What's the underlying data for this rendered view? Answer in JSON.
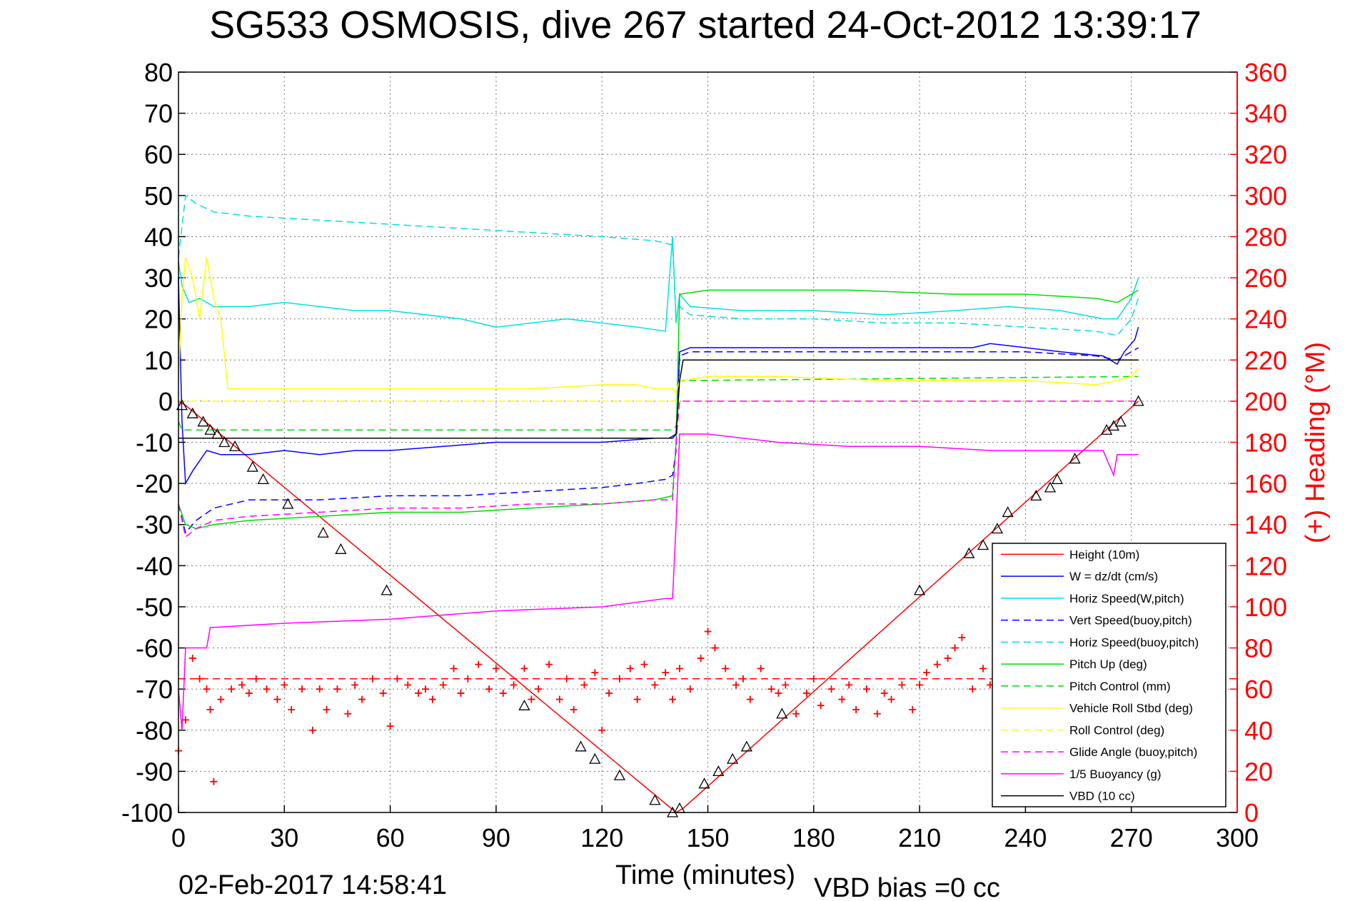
{
  "chart_data": {
    "type": "line",
    "title": "SG533 OSMOSIS, dive 267 started 24-Oct-2012 13:39:17",
    "xlabel": "Time (minutes)",
    "ylabel": "",
    "ylabel_right": "(+) Heading (°M)",
    "footer_left": "02-Feb-2017 14:58:41",
    "footer_right": "VBD bias =0 cc",
    "xlim": [
      0,
      300
    ],
    "ylim": [
      -100,
      80
    ],
    "ylim_right": [
      0,
      360
    ],
    "grid": true,
    "legend_position": "lower-right",
    "x_ticks": [
      "0",
      "30",
      "60",
      "90",
      "120",
      "150",
      "180",
      "210",
      "240",
      "270",
      "300"
    ],
    "y_ticks": [
      "80",
      "70",
      "60",
      "50",
      "40",
      "30",
      "20",
      "10",
      "0",
      "-10",
      "-20",
      "-30",
      "-40",
      "-50",
      "-60",
      "-70",
      "-80",
      "-90",
      "-100"
    ],
    "y_ticks_right": [
      "360",
      "340",
      "320",
      "300",
      "280",
      "260",
      "240",
      "220",
      "200",
      "180",
      "160",
      "140",
      "120",
      "100",
      "80",
      "60",
      "40",
      "20",
      "0"
    ],
    "axis_right_color": "#ff0000",
    "series": [
      {
        "name": "Height (10m)",
        "color": "#ff0000",
        "dash": "solid",
        "x": [
          0,
          2,
          141,
          143,
          272
        ],
        "y": [
          0,
          -1,
          -100,
          -99,
          0
        ]
      },
      {
        "name": "W = dz/dt (cm/s)",
        "color": "#0000ff",
        "dash": "solid",
        "x": [
          0,
          1,
          2,
          4,
          8,
          12,
          20,
          30,
          40,
          50,
          60,
          75,
          90,
          105,
          120,
          135,
          139,
          141,
          142,
          145,
          160,
          175,
          200,
          225,
          230,
          250,
          262,
          266,
          268,
          271,
          272
        ],
        "y": [
          30,
          -5,
          -20,
          -17,
          -12,
          -13,
          -13,
          -12,
          -13,
          -12,
          -12,
          -11,
          -10,
          -10,
          -10,
          -9,
          -9,
          -8,
          12,
          13,
          13,
          13,
          13,
          13,
          14,
          12,
          11,
          9,
          12,
          15,
          18
        ]
      },
      {
        "name": "Horiz Speed(W,pitch)",
        "color": "#00e0e0",
        "dash": "solid",
        "x": [
          0,
          1,
          3,
          6,
          10,
          20,
          30,
          40,
          50,
          60,
          80,
          90,
          100,
          110,
          120,
          130,
          138,
          140,
          141,
          142,
          145,
          160,
          180,
          200,
          220,
          235,
          250,
          262,
          266,
          270,
          272
        ],
        "y": [
          34,
          28,
          24,
          25,
          23,
          23,
          24,
          23,
          22,
          22,
          20,
          18,
          19,
          20,
          19,
          18,
          17,
          40,
          19,
          26,
          23,
          22,
          22,
          21,
          22,
          23,
          22,
          20,
          20,
          25,
          30
        ]
      },
      {
        "name": "Vert Speed(buoy,pitch)",
        "color": "#0000ff",
        "dash": "dashed",
        "x": [
          0,
          2,
          5,
          10,
          20,
          40,
          60,
          80,
          100,
          120,
          130,
          138,
          140,
          141,
          142,
          145,
          180,
          210,
          240,
          260,
          266,
          270,
          272
        ],
        "y": [
          -25,
          -32,
          -29,
          -26,
          -24,
          -24,
          -23,
          -23,
          -22,
          -21,
          -20,
          -19,
          -18,
          -12,
          11,
          12,
          12,
          12,
          12,
          11,
          10,
          12,
          13
        ]
      },
      {
        "name": "Horiz Speed(buoy,pitch)",
        "color": "#00e0e0",
        "dash": "dashed",
        "x": [
          0,
          2,
          5,
          10,
          20,
          40,
          60,
          80,
          100,
          120,
          135,
          140,
          141,
          142,
          145,
          160,
          180,
          200,
          220,
          240,
          260,
          266,
          270,
          272
        ],
        "y": [
          35,
          50,
          48,
          46,
          45,
          44,
          43,
          42,
          41,
          40,
          39,
          38,
          20,
          23,
          21,
          20,
          20,
          19,
          19,
          18,
          17,
          16,
          20,
          25
        ]
      },
      {
        "name": "Pitch Up (deg)",
        "color": "#00dd00",
        "dash": "solid",
        "x": [
          0,
          2,
          5,
          10,
          20,
          40,
          60,
          80,
          100,
          120,
          135,
          140,
          141,
          142,
          150,
          170,
          190,
          220,
          240,
          260,
          266,
          270,
          272
        ],
        "y": [
          -25,
          -30,
          -31,
          -30,
          -29,
          -28,
          -27,
          -27,
          -26,
          -25,
          -24,
          -23,
          -10,
          26,
          27,
          27,
          27,
          26,
          26,
          25,
          24,
          26,
          27
        ]
      },
      {
        "name": "Pitch Control (mm)",
        "color": "#00dd00",
        "dash": "dashed",
        "x": [
          0,
          1,
          2,
          140,
          141,
          142,
          272
        ],
        "y": [
          -5,
          -7,
          -7,
          -7,
          -6,
          5,
          6
        ]
      },
      {
        "name": "Vehicle Roll Stbd (deg)",
        "color": "#ffff00",
        "dash": "solid",
        "x": [
          0,
          1,
          2,
          4,
          6,
          8,
          10,
          12,
          14,
          40,
          60,
          80,
          100,
          120,
          130,
          135,
          140,
          141,
          142,
          150,
          170,
          200,
          220,
          240,
          260,
          266,
          270,
          272
        ],
        "y": [
          5,
          25,
          35,
          30,
          20,
          35,
          25,
          20,
          3,
          3,
          3,
          3,
          3,
          4,
          4,
          3,
          3,
          2,
          5,
          6,
          6,
          5,
          5,
          5,
          4,
          5,
          6,
          8
        ]
      },
      {
        "name": "Roll Control (deg)",
        "color": "#ffff00",
        "dash": "dashed",
        "x": [
          0,
          140,
          141,
          272
        ],
        "y": [
          0,
          0,
          0,
          0
        ]
      },
      {
        "name": "Glide Angle (buoy,pitch)",
        "color": "#ff00ff",
        "dash": "dashed",
        "x": [
          0,
          2,
          5,
          10,
          20,
          40,
          60,
          80,
          100,
          120,
          135,
          140,
          141,
          142,
          272
        ],
        "y": [
          -25,
          -33,
          -31,
          -29,
          -28,
          -27,
          -26,
          -26,
          -25,
          -25,
          -24,
          -24,
          -10,
          0,
          0
        ]
      },
      {
        "name": "1/5 Buoyancy (g)",
        "color": "#ff00ff",
        "dash": "solid",
        "x": [
          0,
          1,
          2,
          5,
          8,
          9,
          10,
          30,
          60,
          90,
          120,
          138,
          140,
          141,
          142,
          145,
          150,
          170,
          190,
          210,
          230,
          250,
          262,
          264,
          265,
          266,
          272
        ],
        "y": [
          -70,
          -80,
          -60,
          -60,
          -60,
          -55,
          -55,
          -54,
          -53,
          -51,
          -50,
          -48,
          -48,
          -30,
          -8,
          -8,
          -8,
          -10,
          -11,
          -11,
          -12,
          -12,
          -12,
          -16,
          -18,
          -13,
          -13
        ]
      },
      {
        "name": "VBD (10 cc)",
        "color": "#000000",
        "dash": "solid",
        "x": [
          0,
          1,
          2,
          140,
          141,
          142,
          143,
          150,
          272
        ],
        "y": [
          -9,
          -9,
          -9,
          -9,
          -8,
          5,
          10,
          10,
          10
        ]
      }
    ],
    "heading_target": {
      "color": "#ff0000",
      "dash": "dashed",
      "y_right": 65
    },
    "heading_points": {
      "color": "#ff0000",
      "marker": "+",
      "x": [
        0,
        2,
        4,
        6,
        8,
        9,
        10,
        12,
        15,
        18,
        20,
        22,
        25,
        28,
        30,
        32,
        35,
        38,
        40,
        42,
        45,
        48,
        50,
        52,
        55,
        58,
        60,
        62,
        65,
        68,
        70,
        72,
        75,
        78,
        80,
        82,
        85,
        88,
        90,
        92,
        95,
        98,
        100,
        102,
        105,
        108,
        110,
        112,
        115,
        118,
        120,
        122,
        125,
        128,
        130,
        132,
        135,
        138,
        140,
        142,
        145,
        148,
        150,
        152,
        155,
        158,
        160,
        162,
        165,
        168,
        170,
        172,
        175,
        178,
        180,
        182,
        185,
        188,
        190,
        192,
        195,
        198,
        200,
        202,
        205,
        208,
        210,
        212,
        215,
        218,
        220,
        222,
        225,
        228,
        230
      ],
      "y": [
        30,
        45,
        75,
        65,
        60,
        50,
        15,
        55,
        60,
        62,
        58,
        65,
        60,
        55,
        62,
        50,
        60,
        40,
        60,
        50,
        60,
        48,
        62,
        55,
        65,
        58,
        42,
        65,
        62,
        58,
        60,
        55,
        62,
        70,
        58,
        65,
        72,
        60,
        70,
        58,
        62,
        70,
        55,
        60,
        72,
        55,
        65,
        50,
        62,
        68,
        40,
        58,
        65,
        70,
        55,
        72,
        62,
        68,
        55,
        70,
        60,
        75,
        88,
        80,
        70,
        62,
        65,
        55,
        70,
        60,
        58,
        62,
        48,
        58,
        65,
        52,
        60,
        55,
        62,
        50,
        60,
        48,
        58,
        55,
        62,
        50,
        62,
        68,
        72,
        75,
        80,
        85,
        60,
        70,
        62
      ]
    },
    "markers": {
      "color": "#000000",
      "shape": "triangle",
      "x": [
        1,
        4,
        7,
        9,
        11,
        13,
        16,
        21,
        24,
        31,
        41,
        46,
        59,
        98,
        114,
        118,
        125,
        135,
        140,
        142,
        149,
        153,
        157,
        161,
        171,
        210,
        224,
        228,
        232,
        235,
        243,
        247,
        249,
        254,
        263,
        265,
        267,
        272
      ],
      "y": [
        -1,
        -3,
        -5,
        -7,
        -8,
        -10,
        -11,
        -16,
        -19,
        -25,
        -32,
        -36,
        -46,
        -74,
        -84,
        -87,
        -91,
        -97,
        -100,
        -99,
        -93,
        -90,
        -87,
        -84,
        -76,
        -46,
        -37,
        -35,
        -31,
        -27,
        -23,
        -21,
        -19,
        -14,
        -7,
        -6,
        -5,
        0
      ]
    }
  }
}
